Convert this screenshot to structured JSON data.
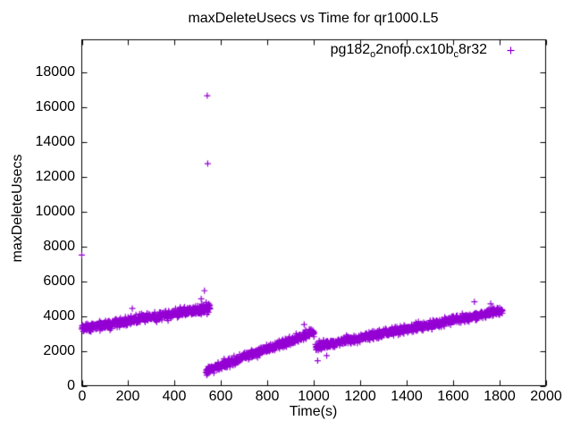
{
  "title": "maxDeleteUsecs vs Time for qr1000.L5",
  "legend": {
    "series_name": "pg182_o2nofp.cx10b_c8r32",
    "marker": "plus",
    "marker_color": "#9400D3",
    "parts": [
      {
        "text": "pg182",
        "sub": false
      },
      {
        "text": "o",
        "sub": true
      },
      {
        "text": "2nofp.cx10b",
        "sub": false
      },
      {
        "text": "c",
        "sub": true
      },
      {
        "text": "8r32",
        "sub": false
      }
    ]
  },
  "chart_data": {
    "type": "scatter",
    "title": "maxDeleteUsecs vs Time for qr1000.L5",
    "xlabel": "Time(s)",
    "ylabel": "maxDeleteUsecs",
    "xlim": [
      0,
      2000
    ],
    "ylim": [
      0,
      19850
    ],
    "x_ticks": [
      0,
      200,
      400,
      600,
      800,
      1000,
      1200,
      1400,
      1600,
      1800,
      2000
    ],
    "y_ticks": [
      0,
      2000,
      4000,
      6000,
      8000,
      10000,
      12000,
      14000,
      16000,
      18000
    ],
    "grid": false,
    "tick_style": "inward-mirrored",
    "legend_position": "inside-top-right",
    "series": [
      {
        "name": "pg182_o2nofp.cx10b_c8r32",
        "color": "#9400D3",
        "marker": "plus",
        "marker_size_px": 7,
        "trend_segments": [
          {
            "t_start": 0,
            "t_end": 553,
            "v_start": 3300,
            "v_end": 4450,
            "noise_halfwidth": 375,
            "n_points": 555
          },
          {
            "t_start": 535,
            "t_end": 1002,
            "v_start": 840,
            "v_end": 3100,
            "noise_halfwidth": 360,
            "n_points": 470
          },
          {
            "t_start": 1008,
            "t_end": 1814,
            "v_start": 2250,
            "v_end": 4300,
            "noise_halfwidth": 350,
            "n_points": 810
          }
        ],
        "outlier_points": [
          [
            0,
            7490
          ],
          [
            218,
            4430
          ],
          [
            515,
            4980
          ],
          [
            529,
            5450
          ],
          [
            541,
            16640
          ],
          [
            543,
            12740
          ],
          [
            959,
            3510
          ],
          [
            1017,
            1430
          ],
          [
            1056,
            1720
          ],
          [
            1693,
            4810
          ],
          [
            1763,
            4700
          ]
        ]
      }
    ]
  }
}
